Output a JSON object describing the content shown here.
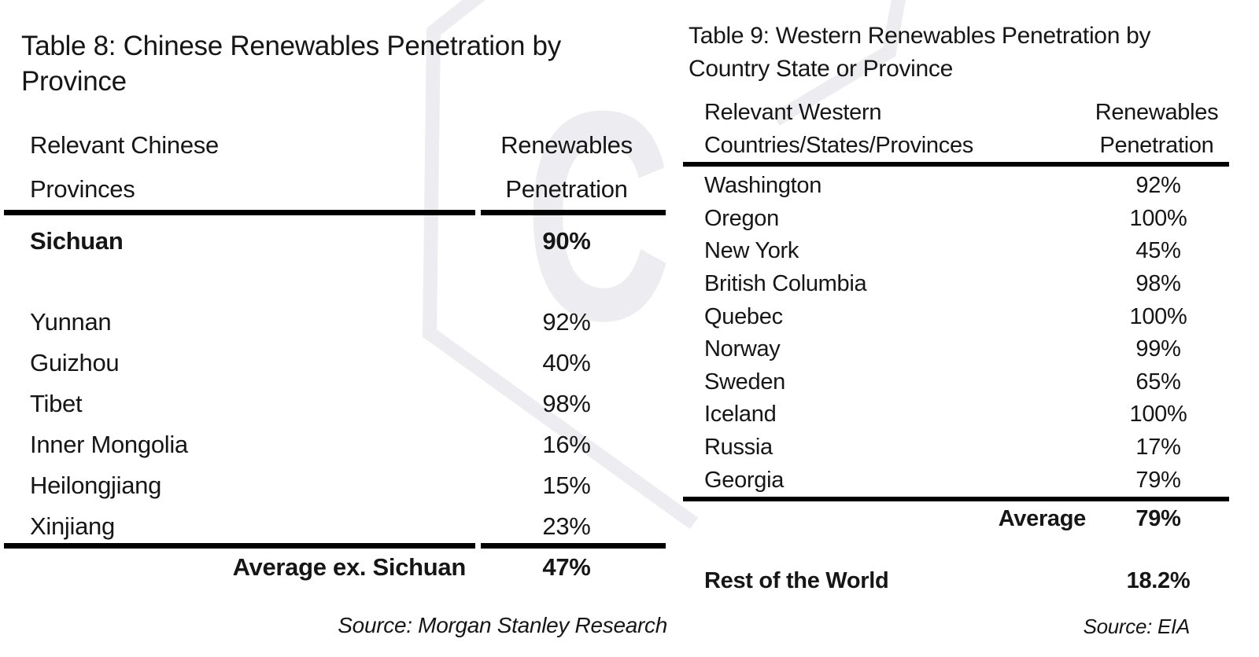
{
  "colors": {
    "text": "#161616",
    "rule": "#000000",
    "watermark": "#ededf1",
    "background": "#ffffff"
  },
  "watermark": {
    "letter": "C"
  },
  "tables": [
    {
      "title": "Table 8: Chinese Renewables Penetration by Province",
      "columns": {
        "name": "Relevant Chinese Provinces",
        "value": "Renewables Penetration"
      },
      "rows": [
        {
          "name": "Sichuan",
          "value": "90%",
          "bold": true
        },
        {
          "name": "Yunnan",
          "value": "92%"
        },
        {
          "name": "Guizhou",
          "value": "40%"
        },
        {
          "name": "Tibet",
          "value": "98%"
        },
        {
          "name": "Inner Mongolia",
          "value": "16%"
        },
        {
          "name": "Heilongjiang",
          "value": "15%"
        },
        {
          "name": "Xinjiang",
          "value": "23%"
        }
      ],
      "footer": {
        "label": "Average ex. Sichuan",
        "value": "47%"
      },
      "source": "Source: Morgan Stanley Research"
    },
    {
      "title": "Table 9: Western Renewables Penetration by Country State or Province",
      "columns": {
        "name": "Relevant Western Countries/States/Provinces",
        "value": "Renewables Penetration"
      },
      "rows": [
        {
          "name": "Washington",
          "value": "92%"
        },
        {
          "name": "Oregon",
          "value": "100%"
        },
        {
          "name": "New York",
          "value": "45%"
        },
        {
          "name": "British Columbia",
          "value": "98%"
        },
        {
          "name": "Quebec",
          "value": "100%"
        },
        {
          "name": "Norway",
          "value": "99%"
        },
        {
          "name": "Sweden",
          "value": "65%"
        },
        {
          "name": "Iceland",
          "value": "100%"
        },
        {
          "name": "Russia",
          "value": "17%"
        },
        {
          "name": "Georgia",
          "value": "79%"
        }
      ],
      "footer": {
        "label": "Average",
        "value": "79%"
      },
      "extra": {
        "label": "Rest of the World",
        "value": "18.2%"
      },
      "source": "Source: EIA"
    }
  ]
}
